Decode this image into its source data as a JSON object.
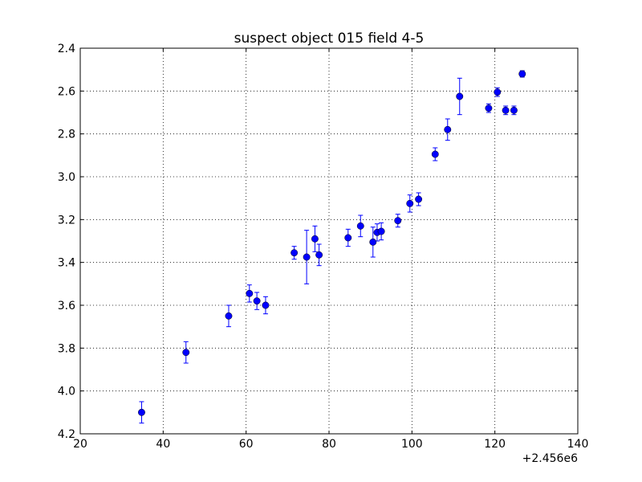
{
  "chart_data": {
    "type": "scatter",
    "title": "suspect object 015 field 4-5",
    "xlabel": "",
    "ylabel": "",
    "x_offset_label": "+2.456e6",
    "xlim": [
      20,
      140
    ],
    "ylim": [
      4.2,
      2.4
    ],
    "y_inverted": true,
    "xticks": [
      "20",
      "40",
      "60",
      "80",
      "100",
      "120",
      "140"
    ],
    "yticks": [
      "2.4",
      "2.6",
      "2.8",
      "3.0",
      "3.2",
      "3.4",
      "3.6",
      "3.8",
      "4.0",
      "4.2"
    ],
    "grid": true,
    "marker_color": "#0000ff",
    "points": [
      {
        "x": 34.8,
        "y": 4.1,
        "err": 0.05
      },
      {
        "x": 45.5,
        "y": 3.82,
        "err": 0.05
      },
      {
        "x": 55.8,
        "y": 3.65,
        "err": 0.05
      },
      {
        "x": 60.8,
        "y": 3.545,
        "err": 0.04
      },
      {
        "x": 62.6,
        "y": 3.58,
        "err": 0.04
      },
      {
        "x": 64.7,
        "y": 3.6,
        "err": 0.04
      },
      {
        "x": 71.6,
        "y": 3.355,
        "err": 0.03
      },
      {
        "x": 74.6,
        "y": 3.375,
        "err": 0.125
      },
      {
        "x": 76.6,
        "y": 3.29,
        "err": 0.06
      },
      {
        "x": 77.6,
        "y": 3.365,
        "err": 0.05
      },
      {
        "x": 84.6,
        "y": 3.285,
        "err": 0.04
      },
      {
        "x": 87.6,
        "y": 3.23,
        "err": 0.05
      },
      {
        "x": 90.6,
        "y": 3.305,
        "err": 0.07
      },
      {
        "x": 91.6,
        "y": 3.26,
        "err": 0.04
      },
      {
        "x": 92.6,
        "y": 3.255,
        "err": 0.04
      },
      {
        "x": 96.6,
        "y": 3.205,
        "err": 0.03
      },
      {
        "x": 99.5,
        "y": 3.125,
        "err": 0.04
      },
      {
        "x": 101.6,
        "y": 3.105,
        "err": 0.03
      },
      {
        "x": 105.6,
        "y": 2.895,
        "err": 0.03
      },
      {
        "x": 108.6,
        "y": 2.78,
        "err": 0.05
      },
      {
        "x": 111.5,
        "y": 2.625,
        "err": 0.085
      },
      {
        "x": 118.5,
        "y": 2.68,
        "err": 0.02
      },
      {
        "x": 120.6,
        "y": 2.605,
        "err": 0.02
      },
      {
        "x": 122.6,
        "y": 2.69,
        "err": 0.02
      },
      {
        "x": 124.6,
        "y": 2.69,
        "err": 0.02
      },
      {
        "x": 126.6,
        "y": 2.52,
        "err": 0.015
      }
    ]
  }
}
